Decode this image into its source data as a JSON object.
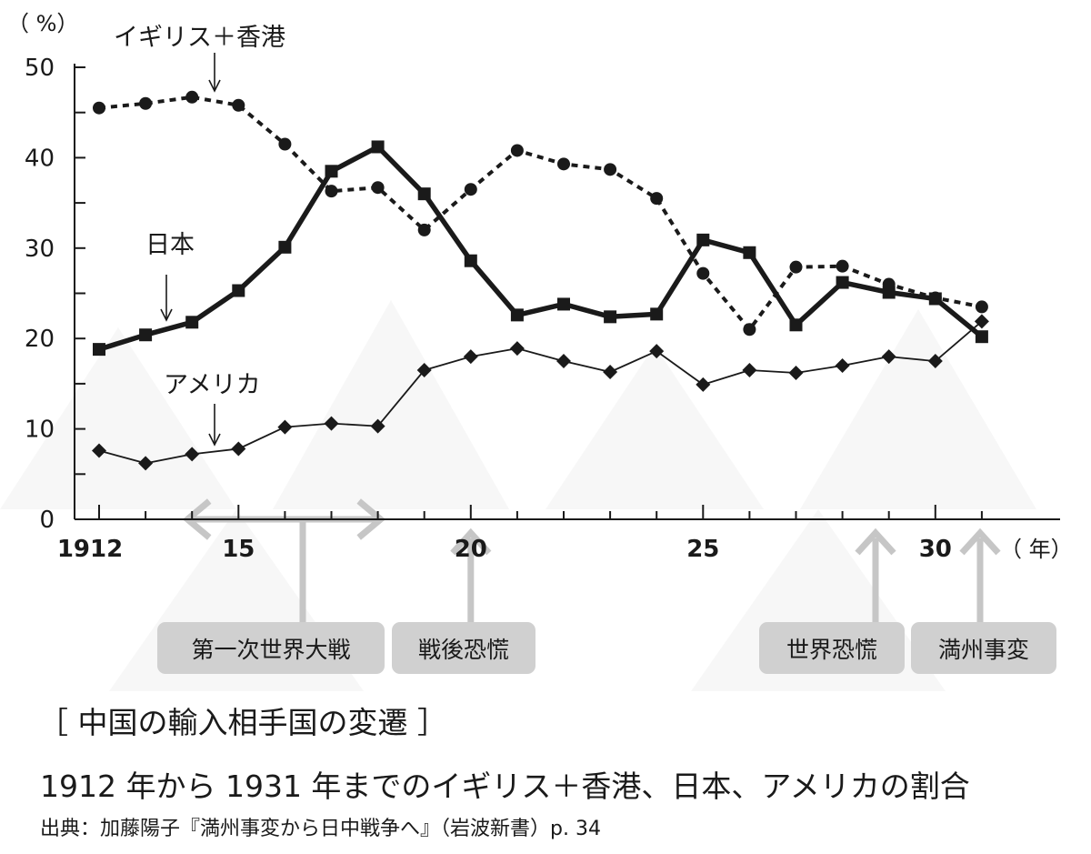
{
  "chart_data": {
    "type": "line",
    "y_unit": "（ %）",
    "x_unit": "（ 年）",
    "x": [
      1912,
      1913,
      1914,
      1915,
      1916,
      1917,
      1918,
      1919,
      1920,
      1921,
      1922,
      1923,
      1924,
      1925,
      1926,
      1927,
      1928,
      1929,
      1930,
      1931
    ],
    "x_tick_values": [
      1912,
      1915,
      1920,
      1925,
      1930
    ],
    "x_tick_labels": [
      "1912",
      "15",
      "20",
      "25",
      "30"
    ],
    "xlim": [
      1911.5,
      1932.8
    ],
    "ylim": [
      0,
      50
    ],
    "y_ticks": [
      0,
      10,
      20,
      30,
      40,
      50
    ],
    "y_tick_labels": [
      "0",
      "10",
      "20",
      "30",
      "40",
      "50"
    ],
    "grid": false,
    "series": [
      {
        "name": "イギリス＋香港",
        "style": "dotted",
        "marker": "circle",
        "values": [
          45.5,
          46,
          46.7,
          45.8,
          41.5,
          36.3,
          36.7,
          32,
          36.5,
          40.8,
          39.3,
          38.7,
          35.5,
          27.2,
          21,
          27.9,
          28,
          26,
          24.5,
          23.5
        ]
      },
      {
        "name": "日本",
        "style": "bold",
        "marker": "square",
        "values": [
          18.8,
          20.4,
          21.8,
          25.3,
          30.1,
          38.5,
          41.2,
          36,
          28.6,
          22.6,
          23.8,
          22.4,
          22.7,
          30.9,
          29.5,
          21.5,
          26.2,
          25.1,
          24.4,
          20.2
        ]
      },
      {
        "name": "アメリカ",
        "style": "thin",
        "marker": "diamond",
        "values": [
          7.6,
          6.2,
          7.2,
          7.8,
          10.2,
          10.6,
          10.3,
          16.5,
          18,
          18.9,
          17.5,
          16.3,
          18.6,
          14.9,
          16.5,
          16.2,
          17,
          18,
          17.5,
          21.9
        ]
      }
    ],
    "events": [
      {
        "label": "第一次世界大戦",
        "range": [
          1914,
          1919
        ]
      },
      {
        "label": "戦後恐慌",
        "year": 1920
      },
      {
        "label": "世界恐慌",
        "year": 1929
      },
      {
        "label": "満州事変",
        "year": 1931
      }
    ],
    "title": "［ 中国の輸入相手国の変遷 ］",
    "subtitle": "1912 年から 1931 年までのイギリス＋香港、日本、アメリカの割合",
    "source": "出典：加藤陽子『満州事変から日中戦争へ』（岩波新書）p. 34"
  },
  "colors": {
    "line": "#1a1a1a",
    "event_box": "#d0d0d0",
    "event_arrow": "#c6c6c6",
    "background_triangles": "#f3f3f3"
  }
}
